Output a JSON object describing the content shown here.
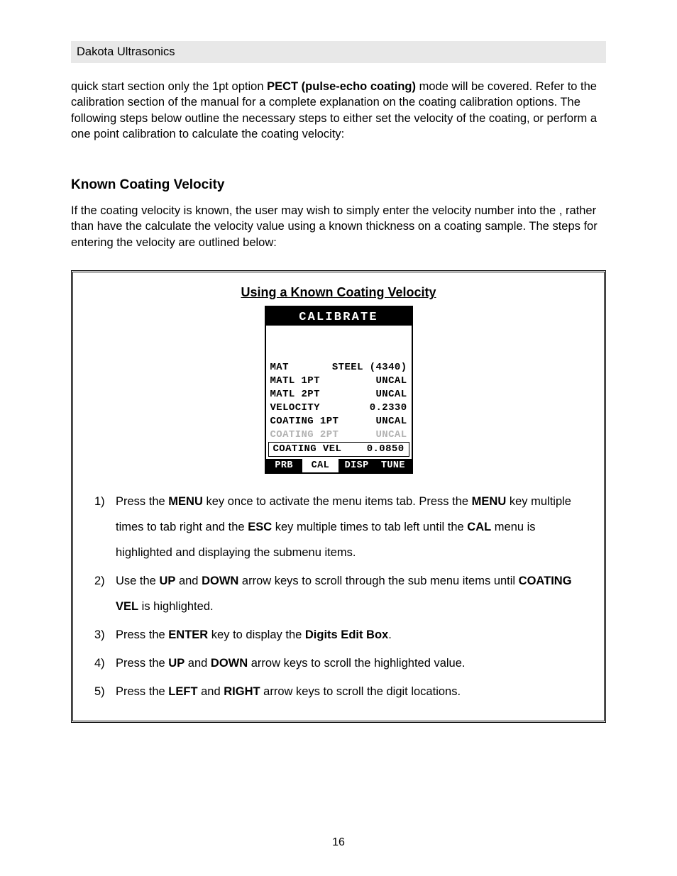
{
  "header": {
    "brand": "Dakota Ultrasonics"
  },
  "intro": {
    "pre": "quick start section only the 1pt option ",
    "bold": "PECT (pulse-echo coating)",
    "post": " mode will be covered.  Refer to the calibration section of the manual for a complete explanation on the coating calibration options.  The following steps below outline the necessary steps to either set the velocity of the coating, or perform a one point calibration to calculate the coating velocity:"
  },
  "section_heading": "Known Coating Velocity",
  "intro2": "If the coating velocity is known, the user may wish to simply enter the velocity number into the          , rather than have the          calculate the velocity value using a known thickness on a coating sample.  The steps for entering the velocity are outlined below:",
  "frame": {
    "title": "Using a Known Coating Velocity",
    "lcd": {
      "title": "CALIBRATE",
      "rows": [
        {
          "label": "MAT",
          "value": "STEEL (4340)",
          "dim": false,
          "boxed": false
        },
        {
          "label": "MATL 1PT",
          "value": "UNCAL",
          "dim": false,
          "boxed": false
        },
        {
          "label": "MATL 2PT",
          "value": "UNCAL",
          "dim": false,
          "boxed": false
        },
        {
          "label": "VELOCITY",
          "value": "0.2330",
          "dim": false,
          "boxed": false
        },
        {
          "label": "COATING 1PT",
          "value": "UNCAL",
          "dim": false,
          "boxed": false
        },
        {
          "label": "COATING 2PT",
          "value": "UNCAL",
          "dim": true,
          "boxed": false
        },
        {
          "label": "COATING VEL",
          "value": "0.0850",
          "dim": false,
          "boxed": true
        }
      ],
      "tabs": [
        {
          "label": "PRB",
          "selected": false
        },
        {
          "label": "CAL",
          "selected": true
        },
        {
          "label": "DISP",
          "selected": false
        },
        {
          "label": "TUNE",
          "selected": false
        }
      ]
    },
    "steps": [
      {
        "num": "1)",
        "runs": [
          {
            "t": "Press the "
          },
          {
            "t": "MENU",
            "b": true
          },
          {
            "t": " key once to activate the menu items tab.  Press the "
          },
          {
            "t": "MENU",
            "b": true
          },
          {
            "t": " key multiple times to tab right and the "
          },
          {
            "t": "ESC",
            "b": true
          },
          {
            "t": " key multiple times to tab left until the "
          },
          {
            "t": "CAL",
            "b": true
          },
          {
            "t": " menu is highlighted and displaying the submenu items."
          }
        ]
      },
      {
        "num": "2)",
        "runs": [
          {
            "t": " Use the "
          },
          {
            "t": "UP",
            "b": true
          },
          {
            "t": " and "
          },
          {
            "t": "DOWN",
            "b": true
          },
          {
            "t": " arrow keys to scroll through the sub menu items until "
          },
          {
            "t": "COATING VEL",
            "b": true
          },
          {
            "t": " is highlighted."
          }
        ]
      },
      {
        "num": "3)",
        "runs": [
          {
            "t": " Press the "
          },
          {
            "t": "ENTER",
            "b": true
          },
          {
            "t": " key to display the "
          },
          {
            "t": "Digits Edit Box",
            "b": true
          },
          {
            "t": "."
          }
        ]
      },
      {
        "num": "4)",
        "runs": [
          {
            "t": " Press the "
          },
          {
            "t": "UP",
            "b": true
          },
          {
            "t": " and "
          },
          {
            "t": "DOWN",
            "b": true
          },
          {
            "t": " arrow keys to scroll the highlighted value."
          }
        ]
      },
      {
        "num": "5)",
        "runs": [
          {
            "t": " Press the "
          },
          {
            "t": "LEFT",
            "b": true
          },
          {
            "t": " and "
          },
          {
            "t": "RIGHT",
            "b": true
          },
          {
            "t": " arrow keys to scroll the digit locations."
          }
        ]
      }
    ]
  },
  "page_number": "16",
  "colors": {
    "header_band_bg": "#e8e8e8",
    "text": "#000000",
    "dim_text": "#b3b3b3",
    "inverse_bg": "#000000",
    "inverse_fg": "#ffffff",
    "page_bg": "#ffffff"
  }
}
